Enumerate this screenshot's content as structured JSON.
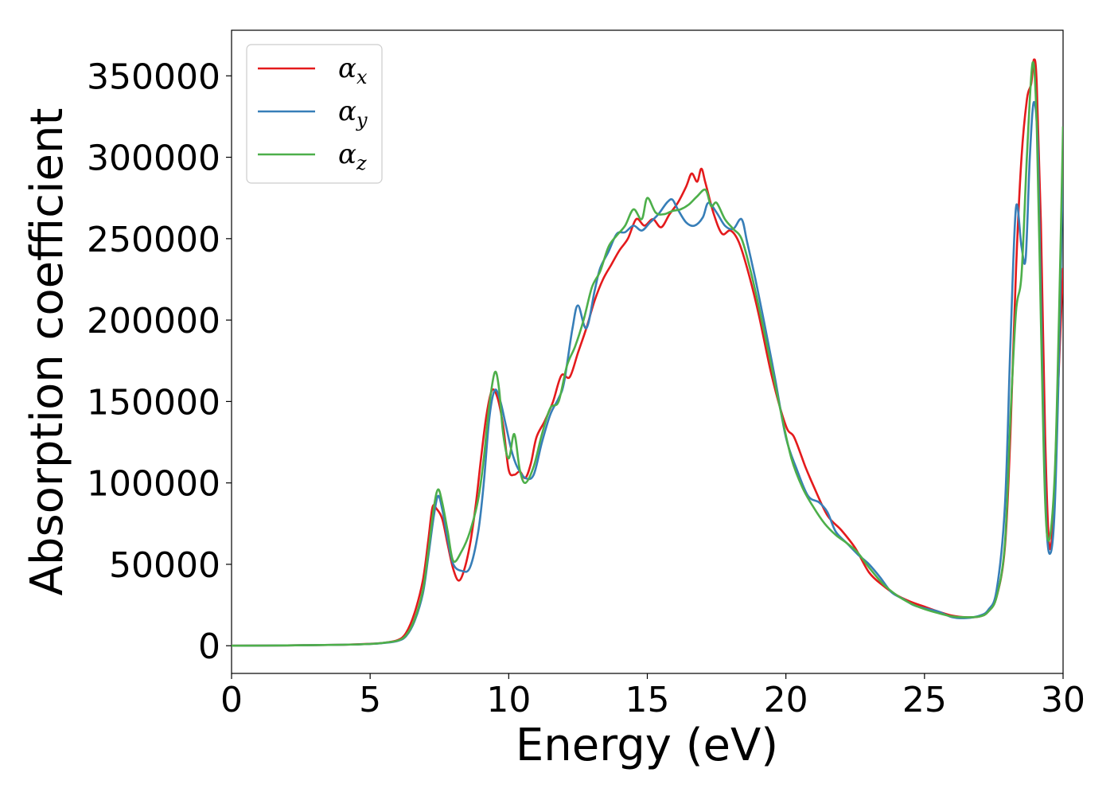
{
  "chart_data": {
    "type": "line",
    "title": "",
    "xlabel": "Energy (eV)",
    "ylabel": "Absorption coefficient",
    "xlim": [
      0,
      30
    ],
    "ylim": [
      -17000,
      378000
    ],
    "xticks": [
      0,
      5,
      10,
      15,
      20,
      25,
      30
    ],
    "yticks": [
      0,
      50000,
      100000,
      150000,
      200000,
      250000,
      300000,
      350000
    ],
    "grid": false,
    "legend_position": "top-left",
    "series": [
      {
        "name": "α_x",
        "label_base": "α",
        "label_sub": "x",
        "color": "#e41a1c",
        "points": [
          [
            0,
            0
          ],
          [
            2,
            200
          ],
          [
            4,
            600
          ],
          [
            5,
            1200
          ],
          [
            5.5,
            1800
          ],
          [
            6,
            3500
          ],
          [
            6.3,
            8000
          ],
          [
            6.6,
            20000
          ],
          [
            6.9,
            40000
          ],
          [
            7.1,
            65000
          ],
          [
            7.25,
            85000
          ],
          [
            7.4,
            84000
          ],
          [
            7.6,
            78000
          ],
          [
            7.8,
            62000
          ],
          [
            8.0,
            47000
          ],
          [
            8.2,
            40000
          ],
          [
            8.4,
            47000
          ],
          [
            8.6,
            62000
          ],
          [
            8.8,
            85000
          ],
          [
            9.0,
            115000
          ],
          [
            9.2,
            142000
          ],
          [
            9.4,
            157000
          ],
          [
            9.6,
            152000
          ],
          [
            9.8,
            135000
          ],
          [
            10.0,
            108000
          ],
          [
            10.2,
            105000
          ],
          [
            10.4,
            107000
          ],
          [
            10.6,
            103000
          ],
          [
            10.8,
            112000
          ],
          [
            11.0,
            128000
          ],
          [
            11.3,
            138000
          ],
          [
            11.6,
            150000
          ],
          [
            11.9,
            166000
          ],
          [
            12.2,
            165000
          ],
          [
            12.5,
            180000
          ],
          [
            12.8,
            195000
          ],
          [
            13.1,
            212000
          ],
          [
            13.4,
            225000
          ],
          [
            13.7,
            234000
          ],
          [
            14.0,
            243000
          ],
          [
            14.3,
            250000
          ],
          [
            14.6,
            262000
          ],
          [
            14.9,
            258000
          ],
          [
            15.2,
            262000
          ],
          [
            15.5,
            257000
          ],
          [
            15.8,
            265000
          ],
          [
            16.1,
            272000
          ],
          [
            16.4,
            282000
          ],
          [
            16.6,
            290000
          ],
          [
            16.8,
            285000
          ],
          [
            16.95,
            293000
          ],
          [
            17.1,
            284000
          ],
          [
            17.4,
            265000
          ],
          [
            17.7,
            253000
          ],
          [
            18.0,
            255000
          ],
          [
            18.3,
            248000
          ],
          [
            18.6,
            232000
          ],
          [
            19.0,
            205000
          ],
          [
            19.5,
            165000
          ],
          [
            20.0,
            135000
          ],
          [
            20.3,
            128000
          ],
          [
            20.7,
            110000
          ],
          [
            21.0,
            98000
          ],
          [
            21.5,
            80000
          ],
          [
            22.0,
            71000
          ],
          [
            22.5,
            60000
          ],
          [
            23.0,
            45000
          ],
          [
            23.5,
            37000
          ],
          [
            24.0,
            31000
          ],
          [
            24.5,
            27000
          ],
          [
            25.0,
            24000
          ],
          [
            25.5,
            21000
          ],
          [
            26.0,
            18500
          ],
          [
            26.5,
            17500
          ],
          [
            27.0,
            18000
          ],
          [
            27.3,
            21000
          ],
          [
            27.6,
            30000
          ],
          [
            27.9,
            60000
          ],
          [
            28.1,
            130000
          ],
          [
            28.3,
            230000
          ],
          [
            28.5,
            300000
          ],
          [
            28.7,
            336000
          ],
          [
            28.85,
            345000
          ],
          [
            28.95,
            360000
          ],
          [
            29.05,
            345000
          ],
          [
            29.2,
            260000
          ],
          [
            29.35,
            130000
          ],
          [
            29.5,
            62000
          ],
          [
            29.65,
            80000
          ],
          [
            29.8,
            150000
          ],
          [
            30.0,
            232000
          ]
        ]
      },
      {
        "name": "α_y",
        "label_base": "α",
        "label_sub": "y",
        "color": "#377eb8",
        "points": [
          [
            0,
            0
          ],
          [
            2,
            200
          ],
          [
            4,
            600
          ],
          [
            5,
            1100
          ],
          [
            5.5,
            1700
          ],
          [
            6,
            3000
          ],
          [
            6.3,
            6000
          ],
          [
            6.6,
            15000
          ],
          [
            6.9,
            32000
          ],
          [
            7.1,
            55000
          ],
          [
            7.3,
            80000
          ],
          [
            7.45,
            92000
          ],
          [
            7.6,
            84000
          ],
          [
            7.8,
            65000
          ],
          [
            8.0,
            50000
          ],
          [
            8.3,
            46000
          ],
          [
            8.6,
            48000
          ],
          [
            8.9,
            70000
          ],
          [
            9.1,
            100000
          ],
          [
            9.3,
            140000
          ],
          [
            9.5,
            157000
          ],
          [
            9.7,
            150000
          ],
          [
            9.9,
            135000
          ],
          [
            10.1,
            120000
          ],
          [
            10.3,
            110000
          ],
          [
            10.6,
            103000
          ],
          [
            10.9,
            105000
          ],
          [
            11.2,
            125000
          ],
          [
            11.5,
            142000
          ],
          [
            11.8,
            152000
          ],
          [
            12.0,
            162000
          ],
          [
            12.3,
            195000
          ],
          [
            12.5,
            209000
          ],
          [
            12.8,
            195000
          ],
          [
            13.1,
            218000
          ],
          [
            13.3,
            232000
          ],
          [
            13.6,
            242000
          ],
          [
            13.9,
            253000
          ],
          [
            14.2,
            254000
          ],
          [
            14.5,
            258000
          ],
          [
            14.8,
            255000
          ],
          [
            15.1,
            260000
          ],
          [
            15.4,
            265000
          ],
          [
            15.7,
            272000
          ],
          [
            15.9,
            274000
          ],
          [
            16.1,
            268000
          ],
          [
            16.4,
            260000
          ],
          [
            16.7,
            258000
          ],
          [
            17.0,
            263000
          ],
          [
            17.2,
            272000
          ],
          [
            17.5,
            266000
          ],
          [
            17.8,
            258000
          ],
          [
            18.1,
            256000
          ],
          [
            18.4,
            262000
          ],
          [
            18.6,
            248000
          ],
          [
            18.9,
            225000
          ],
          [
            19.2,
            200000
          ],
          [
            19.6,
            165000
          ],
          [
            20.0,
            128000
          ],
          [
            20.4,
            108000
          ],
          [
            20.8,
            92000
          ],
          [
            21.2,
            88000
          ],
          [
            21.5,
            82000
          ],
          [
            21.8,
            70000
          ],
          [
            22.2,
            63000
          ],
          [
            22.6,
            56000
          ],
          [
            23.0,
            50000
          ],
          [
            23.4,
            42000
          ],
          [
            23.8,
            33000
          ],
          [
            24.2,
            29000
          ],
          [
            24.6,
            25000
          ],
          [
            25.0,
            23000
          ],
          [
            25.5,
            21000
          ],
          [
            26.0,
            17500
          ],
          [
            26.5,
            17000
          ],
          [
            27.0,
            18500
          ],
          [
            27.3,
            22000
          ],
          [
            27.6,
            34000
          ],
          [
            27.9,
            85000
          ],
          [
            28.1,
            185000
          ],
          [
            28.3,
            269000
          ],
          [
            28.5,
            245000
          ],
          [
            28.65,
            238000
          ],
          [
            28.8,
            300000
          ],
          [
            28.95,
            334000
          ],
          [
            29.1,
            300000
          ],
          [
            29.25,
            170000
          ],
          [
            29.4,
            75000
          ],
          [
            29.55,
            57000
          ],
          [
            29.7,
            85000
          ],
          [
            29.85,
            175000
          ],
          [
            30.0,
            300000
          ]
        ]
      },
      {
        "name": "α_z",
        "label_base": "α",
        "label_sub": "z",
        "color": "#4daf4a",
        "points": [
          [
            0,
            0
          ],
          [
            2,
            200
          ],
          [
            4,
            600
          ],
          [
            5,
            1100
          ],
          [
            5.5,
            1800
          ],
          [
            6,
            3200
          ],
          [
            6.3,
            6500
          ],
          [
            6.6,
            16000
          ],
          [
            6.9,
            34000
          ],
          [
            7.1,
            58000
          ],
          [
            7.3,
            85000
          ],
          [
            7.45,
            96000
          ],
          [
            7.6,
            88000
          ],
          [
            7.8,
            70000
          ],
          [
            8.0,
            52000
          ],
          [
            8.3,
            58000
          ],
          [
            8.6,
            70000
          ],
          [
            8.9,
            90000
          ],
          [
            9.1,
            115000
          ],
          [
            9.3,
            148000
          ],
          [
            9.5,
            168000
          ],
          [
            9.65,
            158000
          ],
          [
            9.8,
            130000
          ],
          [
            10.0,
            115000
          ],
          [
            10.2,
            130000
          ],
          [
            10.4,
            108000
          ],
          [
            10.6,
            100000
          ],
          [
            10.9,
            110000
          ],
          [
            11.2,
            130000
          ],
          [
            11.5,
            146000
          ],
          [
            11.8,
            150000
          ],
          [
            12.1,
            172000
          ],
          [
            12.4,
            184000
          ],
          [
            12.7,
            200000
          ],
          [
            13.0,
            220000
          ],
          [
            13.3,
            230000
          ],
          [
            13.6,
            245000
          ],
          [
            13.9,
            252000
          ],
          [
            14.2,
            258000
          ],
          [
            14.5,
            268000
          ],
          [
            14.8,
            262000
          ],
          [
            15.0,
            275000
          ],
          [
            15.3,
            266000
          ],
          [
            15.6,
            265000
          ],
          [
            15.9,
            267000
          ],
          [
            16.2,
            268000
          ],
          [
            16.5,
            271000
          ],
          [
            16.8,
            276000
          ],
          [
            17.1,
            280000
          ],
          [
            17.3,
            270000
          ],
          [
            17.5,
            272000
          ],
          [
            17.8,
            262000
          ],
          [
            18.1,
            256000
          ],
          [
            18.4,
            250000
          ],
          [
            18.7,
            232000
          ],
          [
            19.0,
            210000
          ],
          [
            19.4,
            178000
          ],
          [
            19.8,
            145000
          ],
          [
            20.2,
            115000
          ],
          [
            20.6,
            97000
          ],
          [
            21.0,
            85000
          ],
          [
            21.4,
            75000
          ],
          [
            21.8,
            68000
          ],
          [
            22.2,
            63000
          ],
          [
            22.6,
            57000
          ],
          [
            23.0,
            48000
          ],
          [
            23.5,
            38000
          ],
          [
            24.0,
            31000
          ],
          [
            24.5,
            26000
          ],
          [
            25.0,
            22500
          ],
          [
            25.5,
            20000
          ],
          [
            26.0,
            18000
          ],
          [
            26.5,
            17500
          ],
          [
            27.0,
            18000
          ],
          [
            27.3,
            21000
          ],
          [
            27.6,
            30000
          ],
          [
            27.9,
            62000
          ],
          [
            28.1,
            140000
          ],
          [
            28.3,
            205000
          ],
          [
            28.5,
            228000
          ],
          [
            28.7,
            302000
          ],
          [
            28.9,
            358000
          ],
          [
            29.05,
            320000
          ],
          [
            29.2,
            200000
          ],
          [
            29.35,
            90000
          ],
          [
            29.5,
            65000
          ],
          [
            29.7,
            105000
          ],
          [
            29.85,
            200000
          ],
          [
            30.0,
            319000
          ]
        ]
      }
    ]
  }
}
